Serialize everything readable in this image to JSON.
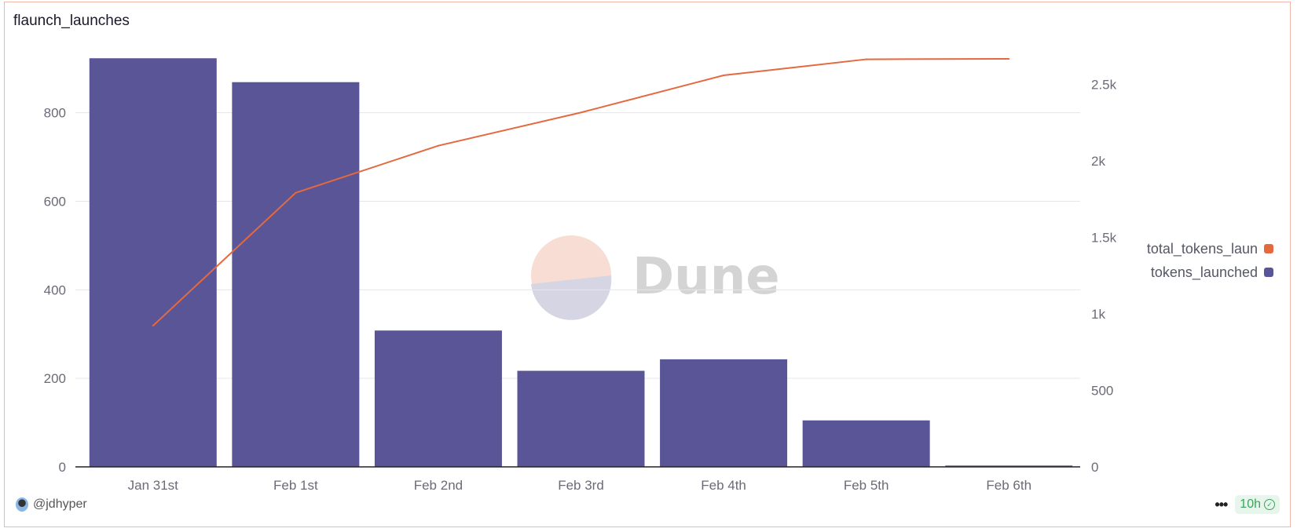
{
  "title": "flaunch_launches",
  "watermark": "Dune",
  "author": "@jdhyper",
  "freshness": "10h",
  "more_icon": "ellipsis-icon",
  "colors": {
    "bar": "#5a5596",
    "line": "#e4693f"
  },
  "chart_data": {
    "type": "bar+line",
    "title": "flaunch_launches",
    "categories": [
      "Jan 31st",
      "Feb 1st",
      "Feb 2nd",
      "Feb 3rd",
      "Feb 4th",
      "Feb 5th",
      "Feb 6th"
    ],
    "series": [
      {
        "name": "tokens_launched",
        "type": "bar",
        "axis": "left",
        "values": [
          923,
          869,
          308,
          217,
          243,
          105,
          3
        ]
      },
      {
        "name": "total_tokens_laun",
        "type": "line",
        "axis": "right",
        "values": [
          923,
          1792,
          2100,
          2317,
          2560,
          2665,
          2668
        ]
      }
    ],
    "left_ticks": [
      "0",
      "200",
      "400",
      "600",
      "800"
    ],
    "left_tick_values": [
      0,
      200,
      400,
      600,
      800
    ],
    "right_ticks": [
      "0",
      "500",
      "1k",
      "1.5k",
      "2k",
      "2.5k"
    ],
    "right_tick_values": [
      0,
      500,
      1000,
      1500,
      2000,
      2500
    ],
    "ylim_left": [
      0,
      950
    ],
    "ylim_right": [
      0,
      2750
    ],
    "grid": true,
    "legend": "right",
    "legend_entries": [
      "total_tokens_laun",
      "tokens_launched"
    ]
  }
}
